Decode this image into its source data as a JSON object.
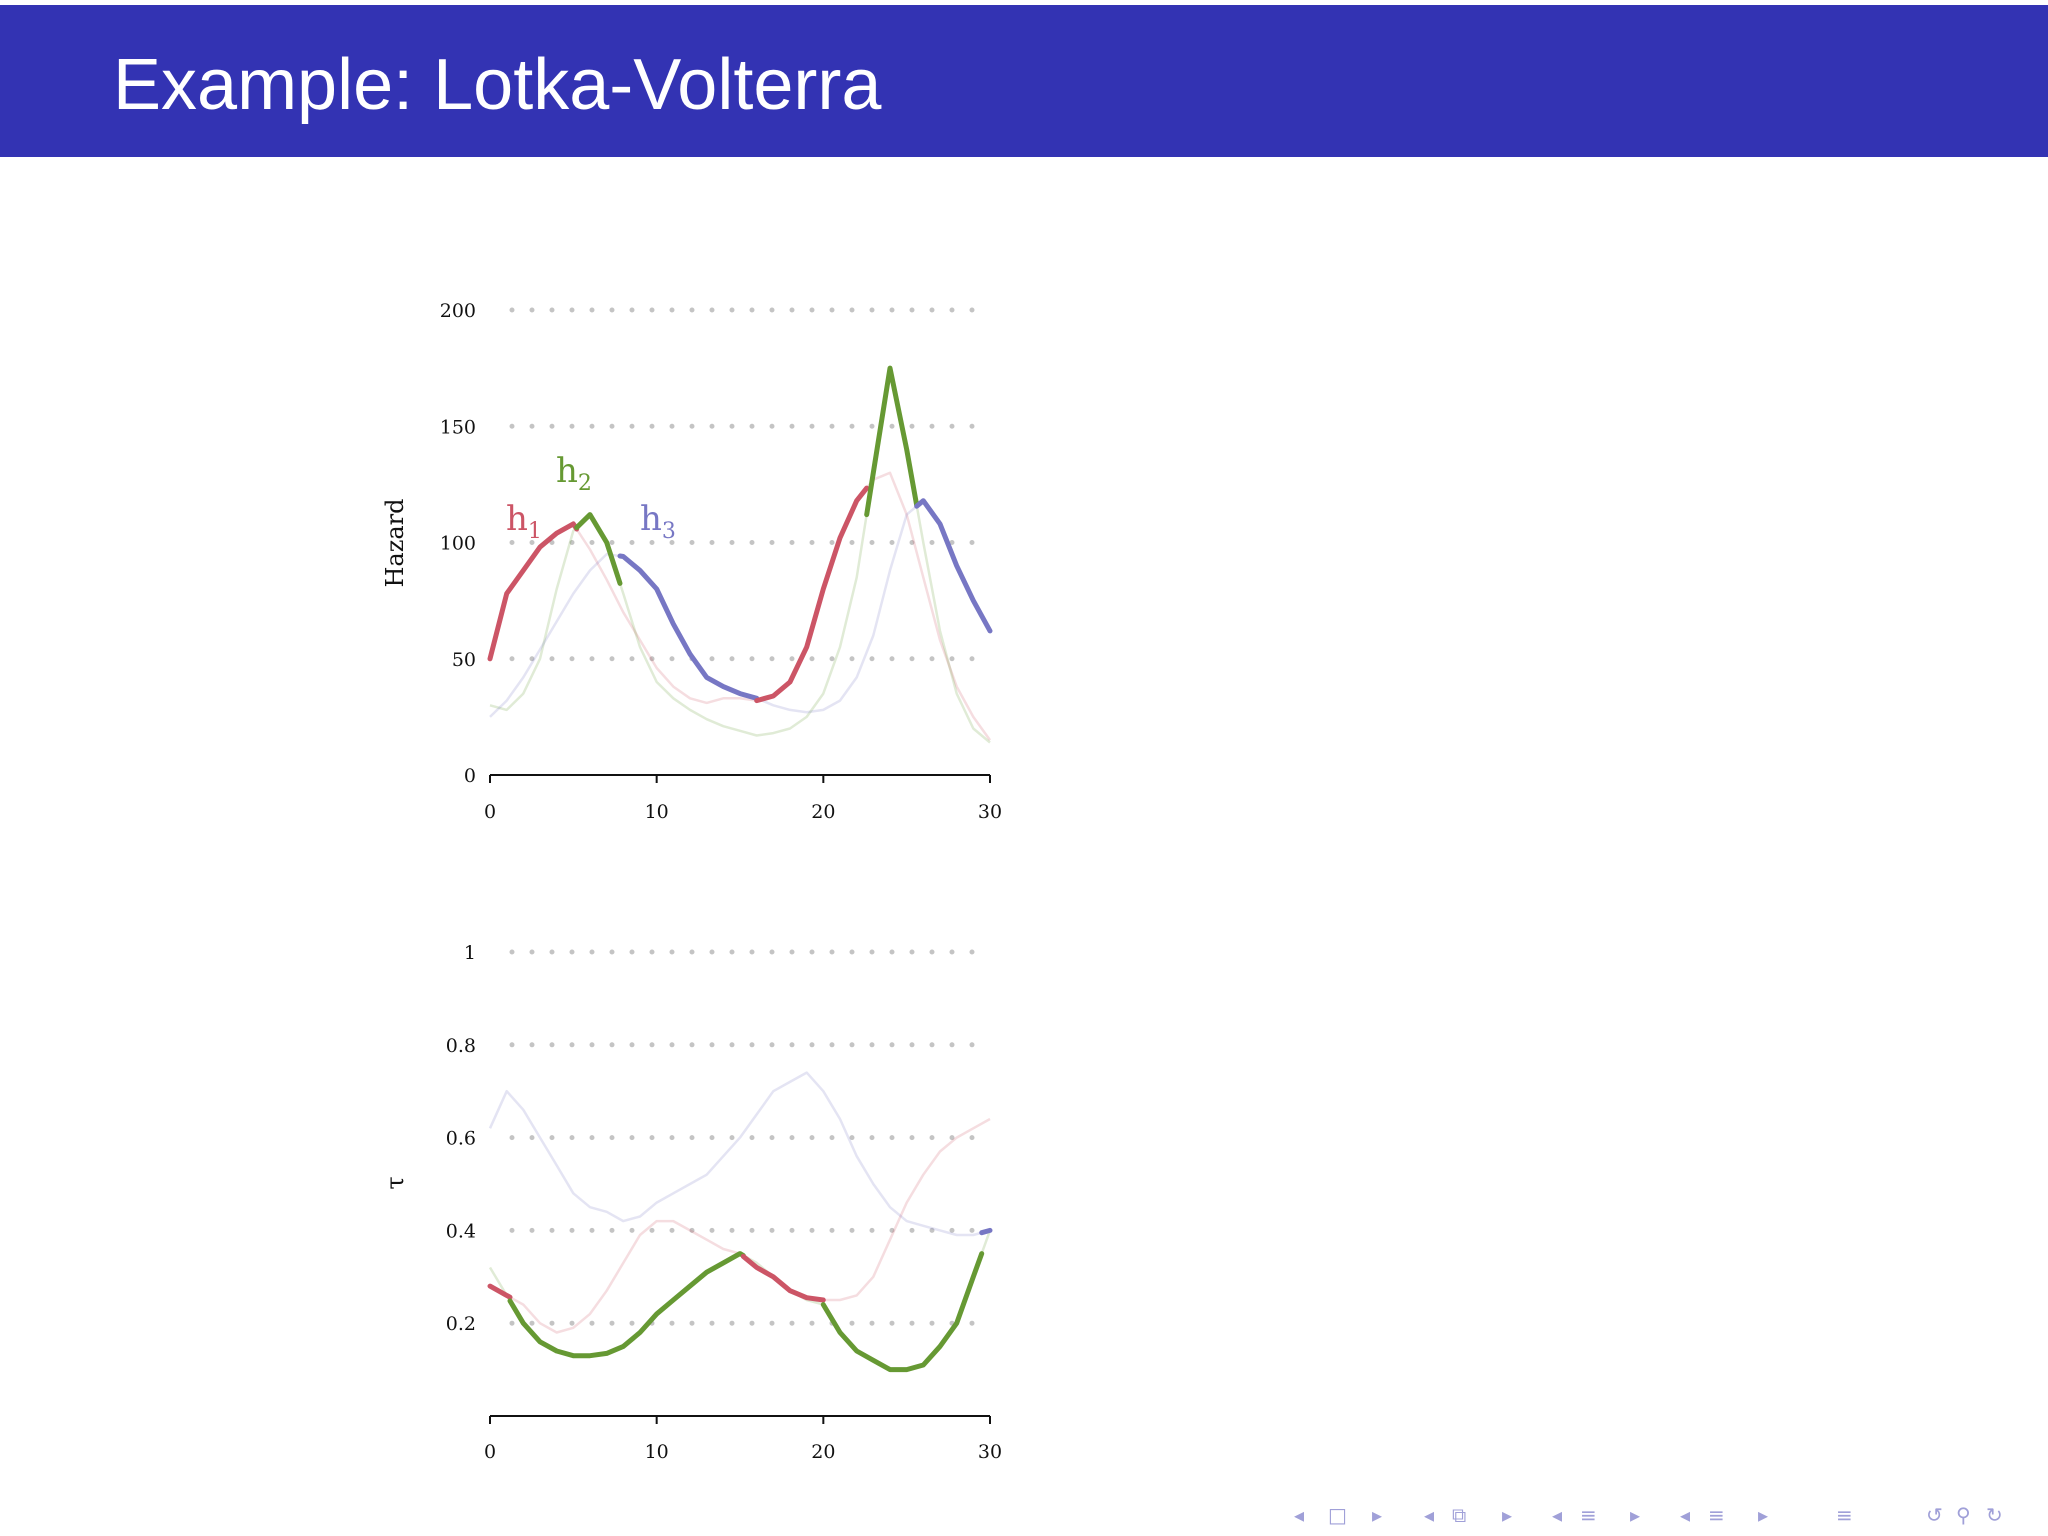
{
  "slide": {
    "title": "Example: Lotka-Volterra"
  },
  "colors": {
    "header": "#3333b3",
    "h1": "#cc5566",
    "h2": "#669933",
    "h3": "#7777c4",
    "nav": "#a0a0d8"
  },
  "chart_data": [
    {
      "type": "line",
      "ylabel": "Hazard",
      "xlabel": "",
      "xlim": [
        0,
        30
      ],
      "ylim": [
        0,
        200
      ],
      "xticks": [
        "0",
        "10",
        "20",
        "30"
      ],
      "yticks": [
        "0",
        "50",
        "100",
        "150",
        "200"
      ],
      "grid": "dotted horizontal",
      "legend_labels": [
        {
          "main": "h",
          "sub": "1",
          "color": "#cc5566"
        },
        {
          "main": "h",
          "sub": "2",
          "color": "#669933"
        },
        {
          "main": "h",
          "sub": "3",
          "color": "#7777c4"
        }
      ],
      "series": [
        {
          "x": [
            0,
            1,
            2,
            3,
            4,
            5,
            6,
            7,
            8,
            9,
            10,
            11,
            12,
            13,
            14,
            15,
            16,
            17,
            18,
            19,
            20,
            21,
            22,
            23,
            24,
            25,
            26,
            27,
            28,
            29,
            30
          ],
          "y": [
            50,
            78,
            88,
            98,
            104,
            108,
            97,
            84,
            70,
            58,
            46,
            38,
            33,
            31,
            33,
            33,
            32,
            34,
            40,
            55,
            80,
            102,
            118,
            127,
            130,
            112,
            85,
            58,
            38,
            25,
            15
          ]
        },
        {
          "x": [
            0,
            1,
            2,
            3,
            4,
            5,
            6,
            7,
            8,
            9,
            10,
            11,
            12,
            13,
            14,
            15,
            16,
            17,
            18,
            19,
            20,
            21,
            22,
            23,
            24,
            25,
            26,
            27,
            28,
            29,
            30
          ],
          "y": [
            30,
            28,
            35,
            50,
            80,
            105,
            112,
            100,
            78,
            55,
            40,
            33,
            28,
            24,
            21,
            19,
            17,
            18,
            20,
            25,
            35,
            55,
            85,
            130,
            175,
            140,
            100,
            62,
            35,
            20,
            14
          ]
        },
        {
          "x": [
            0,
            1,
            2,
            3,
            4,
            5,
            6,
            7,
            8,
            9,
            10,
            11,
            12,
            13,
            14,
            15,
            16,
            17,
            18,
            19,
            20,
            21,
            22,
            23,
            24,
            25,
            26,
            27,
            28,
            29,
            30
          ],
          "y": [
            25,
            32,
            42,
            54,
            66,
            78,
            88,
            95,
            94,
            88,
            80,
            65,
            52,
            42,
            38,
            35,
            33,
            30,
            28,
            27,
            28,
            32,
            42,
            60,
            88,
            112,
            118,
            108,
            90,
            75,
            62
          ]
        }
      ],
      "active_segments": [
        {
          "series": 0,
          "from": 0,
          "to": 5.2
        },
        {
          "series": 1,
          "from": 5.2,
          "to": 7.8
        },
        {
          "series": 2,
          "from": 7.8,
          "to": 16
        },
        {
          "series": 0,
          "from": 16,
          "to": 22.6
        },
        {
          "series": 1,
          "from": 22.6,
          "to": 25.6
        },
        {
          "series": 2,
          "from": 25.6,
          "to": 30
        }
      ]
    },
    {
      "type": "line",
      "ylabel": "τ",
      "xlabel": "",
      "xlim": [
        0,
        30
      ],
      "ylim": [
        0,
        1
      ],
      "xticks": [
        "0",
        "10",
        "20",
        "30"
      ],
      "yticks": [
        "0.2",
        "0.4",
        "0.6",
        "0.8",
        "1"
      ],
      "grid": "dotted horizontal",
      "series": [
        {
          "x": [
            0,
            1,
            2,
            3,
            4,
            5,
            6,
            7,
            8,
            9,
            10,
            11,
            12,
            13,
            14,
            15,
            16,
            17,
            18,
            19,
            20,
            21,
            22,
            23,
            24,
            25,
            26,
            27,
            28,
            29,
            30
          ],
          "y": [
            0.28,
            0.26,
            0.24,
            0.2,
            0.18,
            0.19,
            0.22,
            0.27,
            0.33,
            0.39,
            0.42,
            0.42,
            0.4,
            0.38,
            0.36,
            0.35,
            0.32,
            0.3,
            0.27,
            0.255,
            0.25,
            0.25,
            0.26,
            0.3,
            0.38,
            0.46,
            0.52,
            0.57,
            0.6,
            0.62,
            0.64
          ]
        },
        {
          "x": [
            0,
            1,
            2,
            3,
            4,
            5,
            6,
            7,
            8,
            9,
            10,
            11,
            12,
            13,
            14,
            15,
            16,
            17,
            18,
            19,
            20,
            21,
            22,
            23,
            24,
            25,
            26,
            27,
            28,
            29,
            30
          ],
          "y": [
            0.32,
            0.26,
            0.2,
            0.16,
            0.14,
            0.13,
            0.13,
            0.135,
            0.15,
            0.18,
            0.22,
            0.25,
            0.28,
            0.31,
            0.33,
            0.35,
            0.33,
            0.3,
            0.27,
            0.25,
            0.24,
            0.18,
            0.14,
            0.12,
            0.1,
            0.1,
            0.11,
            0.15,
            0.2,
            0.3,
            0.4
          ]
        },
        {
          "x": [
            0,
            1,
            2,
            3,
            4,
            5,
            6,
            7,
            8,
            9,
            10,
            11,
            12,
            13,
            14,
            15,
            16,
            17,
            18,
            19,
            20,
            21,
            22,
            23,
            24,
            25,
            26,
            27,
            28,
            29,
            30
          ],
          "y": [
            0.62,
            0.7,
            0.66,
            0.6,
            0.54,
            0.48,
            0.45,
            0.44,
            0.42,
            0.43,
            0.46,
            0.48,
            0.5,
            0.52,
            0.56,
            0.6,
            0.65,
            0.7,
            0.72,
            0.74,
            0.7,
            0.64,
            0.56,
            0.5,
            0.45,
            0.42,
            0.41,
            0.4,
            0.39,
            0.39,
            0.4
          ]
        }
      ],
      "active_segments": [
        {
          "series": 0,
          "from": 0,
          "to": 1.2
        },
        {
          "series": 1,
          "from": 1.2,
          "to": 15.2
        },
        {
          "series": 0,
          "from": 15.2,
          "to": 20
        },
        {
          "series": 1,
          "from": 20,
          "to": 29.5
        },
        {
          "series": 2,
          "from": 29.5,
          "to": 30
        }
      ]
    }
  ],
  "nav_icons": [
    "nav-prev-slide-icon",
    "nav-slide-icon",
    "nav-next-slide-icon",
    "nav-prev-frame-icon",
    "nav-frame-icon",
    "nav-next-frame-icon",
    "nav-prev-subsection-icon",
    "nav-subsection-icon",
    "nav-next-subsection-icon",
    "nav-prev-section-icon",
    "nav-section-icon",
    "nav-next-section-icon",
    "nav-toc-icon",
    "nav-back-icon",
    "nav-search-icon",
    "nav-forward-icon"
  ]
}
